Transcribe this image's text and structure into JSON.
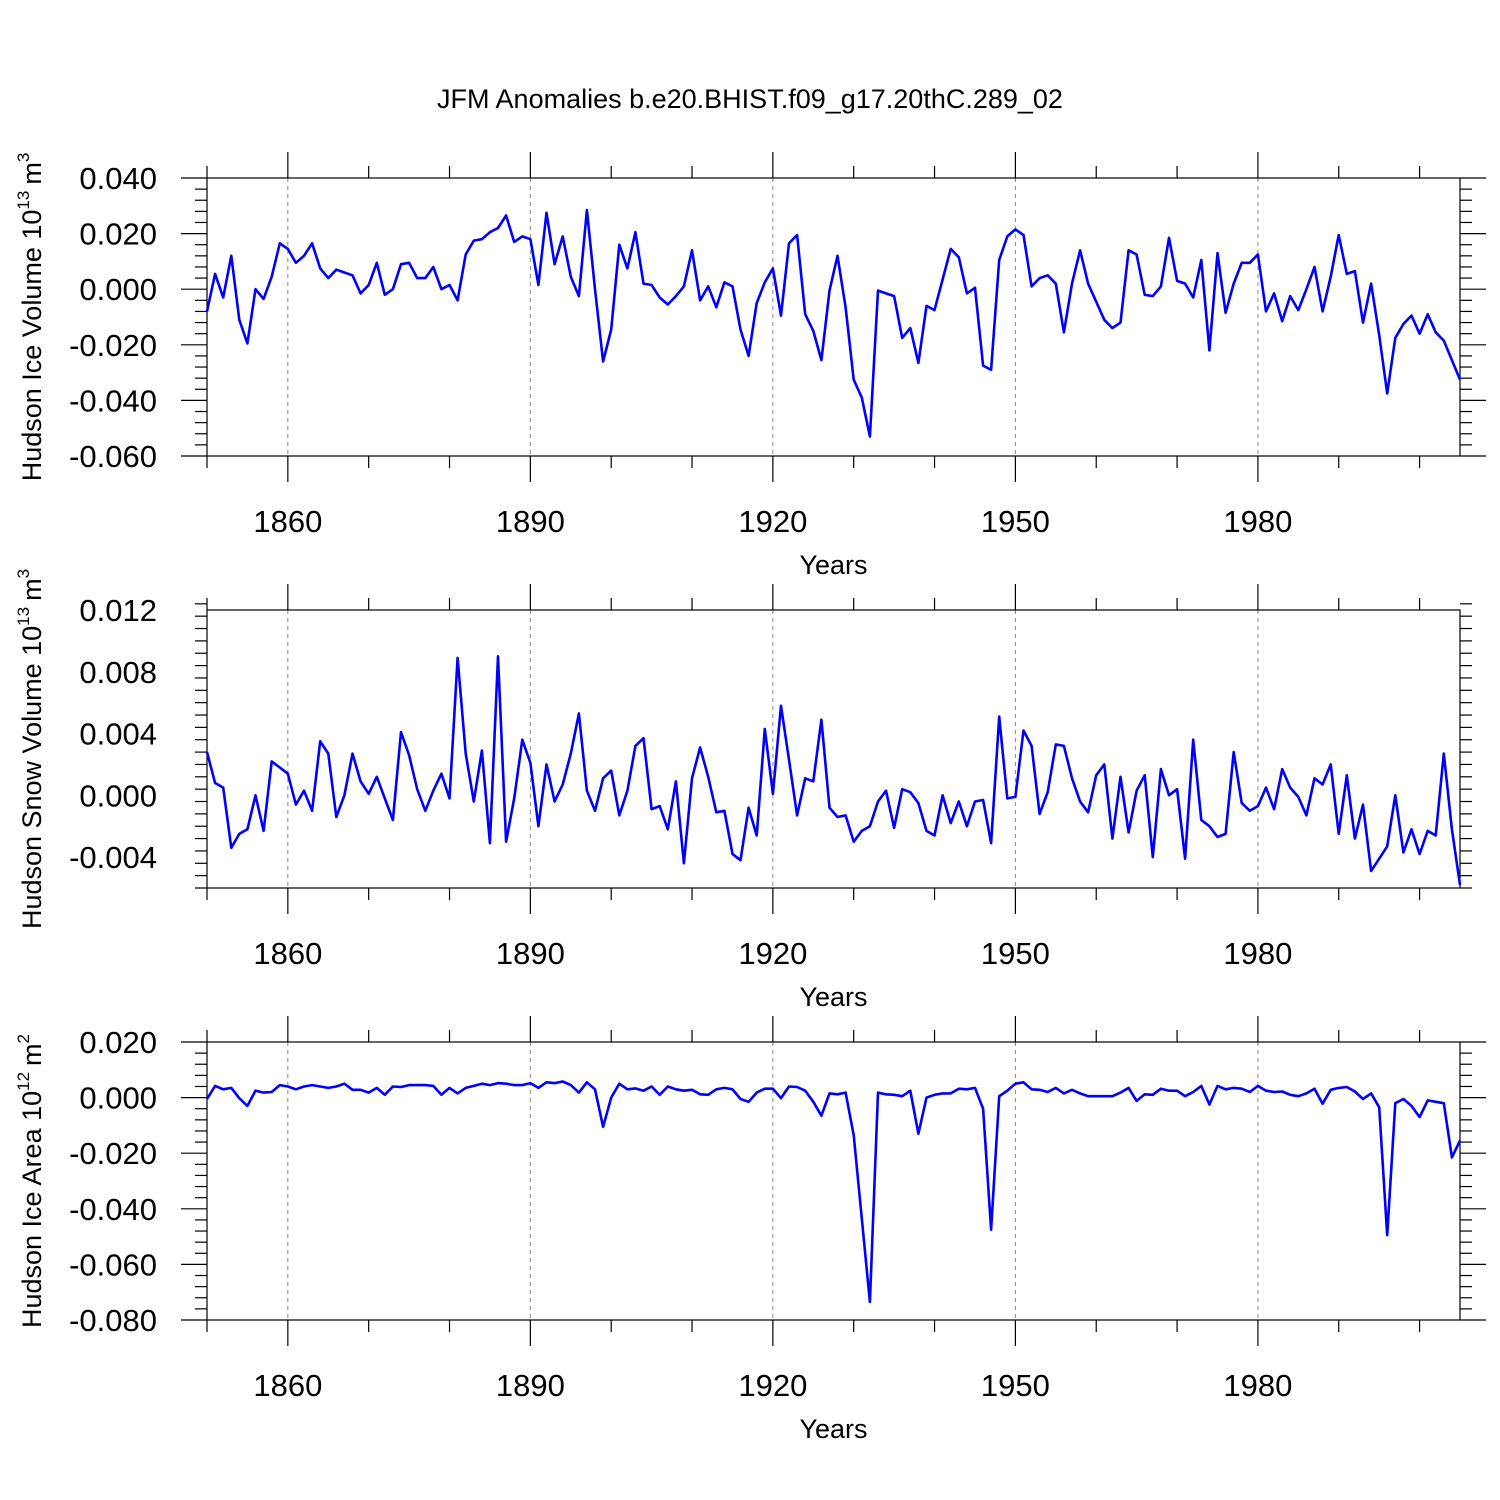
{
  "title": "JFM Anomalies b.e20.BHIST.f09_g17.20thC.289_02",
  "colors": {
    "line": "#0000ff",
    "axis": "#000000",
    "grid": "#888888",
    "background": "#ffffff"
  },
  "chart_data": [
    {
      "type": "line",
      "id": "ice-volume",
      "ylabel": "Hudson Ice Volume",
      "ylabel_unit_base": "10",
      "ylabel_unit_exp": "13",
      "ylabel_unit_m": "m",
      "ylabel_unit_m_exp": "3",
      "xlabel": "Years",
      "xlim": [
        1850,
        2005
      ],
      "ylim": [
        -0.06,
        0.04
      ],
      "x_ticks": [
        1860,
        1890,
        1920,
        1950,
        1980
      ],
      "x_tick_labels": [
        "1860",
        "1890",
        "1920",
        "1950",
        "1980"
      ],
      "y_ticks": [
        -0.06,
        -0.04,
        -0.02,
        0.0,
        0.02,
        0.04
      ],
      "y_tick_labels": [
        "-0.060",
        "-0.040",
        "-0.020",
        "0.000",
        "0.020",
        "0.040"
      ],
      "x_start": 1850,
      "values": [
        -0.008,
        0.0055,
        -0.003,
        0.012,
        -0.011,
        -0.0195,
        0.0,
        -0.0035,
        0.0045,
        0.0165,
        0.0145,
        0.0095,
        0.012,
        0.0165,
        0.0075,
        0.004,
        0.007,
        0.006,
        0.005,
        -0.0015,
        0.0015,
        0.0095,
        -0.002,
        0.0,
        0.009,
        0.0095,
        0.004,
        0.004,
        0.008,
        0.0,
        0.0015,
        -0.004,
        0.0125,
        0.0175,
        0.018,
        0.0205,
        0.022,
        0.0265,
        0.017,
        0.019,
        0.018,
        0.0015,
        0.0275,
        0.009,
        0.019,
        0.0045,
        -0.0025,
        0.0285,
        0.0,
        -0.026,
        -0.0145,
        0.016,
        0.0075,
        0.0205,
        0.002,
        0.0015,
        -0.003,
        -0.0055,
        -0.0025,
        0.001,
        0.014,
        -0.004,
        0.001,
        -0.0065,
        0.0025,
        0.001,
        -0.0145,
        -0.024,
        -0.005,
        0.0025,
        0.0075,
        -0.0095,
        0.0165,
        0.0195,
        -0.009,
        -0.015,
        -0.0255,
        -0.0005,
        0.012,
        -0.0065,
        -0.0325,
        -0.039,
        -0.053,
        -0.0005,
        -0.0015,
        -0.0025,
        -0.0175,
        -0.014,
        -0.0265,
        -0.006,
        -0.0075,
        0.0035,
        0.0145,
        0.0115,
        -0.0015,
        0.0005,
        -0.0275,
        -0.029,
        0.0105,
        0.019,
        0.0215,
        0.0195,
        0.001,
        0.004,
        0.005,
        0.002,
        -0.0155,
        0.002,
        0.014,
        0.002,
        -0.0045,
        -0.011,
        -0.014,
        -0.012,
        0.014,
        0.0125,
        -0.002,
        -0.0025,
        0.001,
        0.0185,
        0.003,
        0.002,
        -0.003,
        0.0105,
        -0.022,
        0.013,
        -0.0085,
        0.002,
        0.0095,
        0.0095,
        0.0125,
        -0.008,
        -0.0015,
        -0.0115,
        -0.0025,
        -0.0075,
        0.0,
        0.008,
        -0.008,
        0.0045,
        0.0195,
        0.0055,
        0.0065,
        -0.012,
        0.002,
        -0.0165,
        -0.0375,
        -0.0175,
        -0.0125,
        -0.0095,
        -0.016,
        -0.009,
        -0.0155,
        -0.0185,
        -0.0255,
        -0.0325
      ]
    },
    {
      "type": "line",
      "id": "snow-volume",
      "ylabel": "Hudson Snow Volume",
      "ylabel_unit_base": "10",
      "ylabel_unit_exp": "13",
      "ylabel_unit_m": "m",
      "ylabel_unit_m_exp": "3",
      "xlabel": "Years",
      "xlim": [
        1850,
        2005
      ],
      "ylim": [
        -0.006,
        0.012
      ],
      "x_ticks": [
        1860,
        1890,
        1920,
        1950,
        1980
      ],
      "x_tick_labels": [
        "1860",
        "1890",
        "1920",
        "1950",
        "1980"
      ],
      "y_ticks": [
        -0.004,
        0.0,
        0.004,
        0.008,
        0.012
      ],
      "y_tick_labels": [
        "-0.004",
        "0.000",
        "0.004",
        "0.008",
        "0.012"
      ],
      "x_start": 1850,
      "values": [
        0.0028,
        0.0008,
        0.0005,
        -0.0034,
        -0.0025,
        -0.0022,
        0.0,
        -0.0023,
        0.0022,
        0.0018,
        0.0014,
        -0.0006,
        0.0003,
        -0.001,
        0.0035,
        0.0027,
        -0.0014,
        0.0,
        0.0027,
        0.0009,
        0.0001,
        0.0012,
        -0.0002,
        -0.0016,
        0.0041,
        0.0026,
        0.0004,
        -0.001,
        0.0003,
        0.0014,
        -0.0002,
        0.0089,
        0.0027,
        -0.0004,
        0.0029,
        -0.0031,
        0.009,
        -0.003,
        -0.0002,
        0.0036,
        0.0021,
        -0.002,
        0.002,
        -0.0004,
        0.0007,
        0.0027,
        0.0053,
        0.0003,
        -0.001,
        0.0011,
        0.0016,
        -0.0013,
        0.0003,
        0.0032,
        0.0037,
        -0.0009,
        -0.0007,
        -0.0022,
        0.0009,
        -0.0044,
        0.0011,
        0.0031,
        0.0012,
        -0.0011,
        -0.001,
        -0.0038,
        -0.0042,
        -0.0008,
        -0.0026,
        0.0043,
        0.0001,
        0.0058,
        0.0023,
        -0.0013,
        0.0011,
        0.0009,
        0.0049,
        -0.0008,
        -0.0014,
        -0.0013,
        -0.003,
        -0.0023,
        -0.002,
        -0.0004,
        0.0003,
        -0.0021,
        0.0004,
        0.0002,
        -0.0005,
        -0.0023,
        -0.0026,
        0.0,
        -0.0018,
        -0.0004,
        -0.002,
        -0.0004,
        -0.0003,
        -0.0031,
        0.0051,
        -0.0002,
        -0.0001,
        0.0042,
        0.0032,
        -0.0012,
        0.0002,
        0.0033,
        0.0032,
        0.0011,
        -0.0004,
        -0.0011,
        0.0013,
        0.002,
        -0.0028,
        0.0012,
        -0.0024,
        0.0003,
        0.0013,
        -0.004,
        0.0017,
        0.0,
        0.0004,
        -0.0041,
        0.0036,
        -0.0016,
        -0.002,
        -0.0027,
        -0.0025,
        0.0028,
        -0.0005,
        -0.001,
        -0.0007,
        0.0005,
        -0.0009,
        0.0017,
        0.0005,
        -0.0001,
        -0.0013,
        0.0011,
        0.0007,
        0.002,
        -0.0025,
        0.0013,
        -0.0028,
        -0.0006,
        -0.0049,
        -0.0041,
        -0.0033,
        0.0,
        -0.0037,
        -0.0022,
        -0.0038,
        -0.0023,
        -0.0026,
        0.0027,
        -0.0022,
        -0.0058
      ]
    },
    {
      "type": "line",
      "id": "ice-area",
      "ylabel": "Hudson Ice Area",
      "ylabel_unit_base": "10",
      "ylabel_unit_exp": "12",
      "ylabel_unit_m": "m",
      "ylabel_unit_m_exp": "2",
      "xlabel": "Years",
      "xlim": [
        1850,
        2005
      ],
      "ylim": [
        -0.08,
        0.02
      ],
      "x_ticks": [
        1860,
        1890,
        1920,
        1950,
        1980
      ],
      "x_tick_labels": [
        "1860",
        "1890",
        "1920",
        "1950",
        "1980"
      ],
      "y_ticks": [
        -0.08,
        -0.06,
        -0.04,
        -0.02,
        0.0,
        0.02
      ],
      "y_tick_labels": [
        "-0.080",
        "-0.060",
        "-0.040",
        "-0.020",
        "0.000",
        "0.020"
      ],
      "x_start": 1850,
      "values": [
        -0.0005,
        0.0042,
        0.003,
        0.0035,
        -0.0002,
        -0.003,
        0.0025,
        0.0018,
        0.002,
        0.0045,
        0.004,
        0.003,
        0.004,
        0.0045,
        0.004,
        0.0035,
        0.004,
        0.005,
        0.0028,
        0.0028,
        0.0018,
        0.0035,
        0.001,
        0.004,
        0.0038,
        0.0045,
        0.0045,
        0.0045,
        0.0042,
        0.001,
        0.0035,
        0.0015,
        0.0035,
        0.0042,
        0.005,
        0.0045,
        0.0052,
        0.005,
        0.0045,
        0.0045,
        0.0052,
        0.0035,
        0.0055,
        0.0052,
        0.0058,
        0.0045,
        0.0018,
        0.0055,
        0.003,
        -0.0105,
        0.0,
        0.005,
        0.003,
        0.0033,
        0.0025,
        0.004,
        0.001,
        0.004,
        0.003,
        0.0025,
        0.0028,
        0.0012,
        0.001,
        0.003,
        0.0035,
        0.003,
        -0.0005,
        -0.0015,
        0.0018,
        0.0032,
        0.0032,
        -0.0002,
        0.004,
        0.0038,
        0.0025,
        -0.0015,
        -0.0065,
        0.0015,
        0.0012,
        0.0018,
        -0.0135,
        -0.0435,
        -0.0735,
        0.0018,
        0.0012,
        0.001,
        0.0005,
        0.0025,
        -0.013,
        0.0,
        0.001,
        0.0015,
        0.0015,
        0.0032,
        0.003,
        0.0035,
        -0.004,
        -0.0475,
        0.0005,
        0.0025,
        0.005,
        0.0055,
        0.003,
        0.0028,
        0.002,
        0.0035,
        0.0015,
        0.0028,
        0.0015,
        0.0005,
        0.0005,
        0.0005,
        0.0005,
        0.0018,
        0.0035,
        -0.0012,
        0.0012,
        0.001,
        0.0032,
        0.0025,
        0.0025,
        0.0005,
        0.002,
        0.0042,
        -0.0025,
        0.0042,
        0.003,
        0.0035,
        0.0032,
        0.002,
        0.0042,
        0.0025,
        0.002,
        0.0022,
        0.001,
        0.0005,
        0.0015,
        0.0032,
        -0.0022,
        0.0028,
        0.0035,
        0.0038,
        0.0022,
        -0.0005,
        0.0015,
        -0.0035,
        -0.0495,
        -0.002,
        -0.0005,
        -0.003,
        -0.007,
        -0.001,
        -0.0015,
        -0.002,
        -0.0215,
        -0.0155
      ]
    }
  ]
}
